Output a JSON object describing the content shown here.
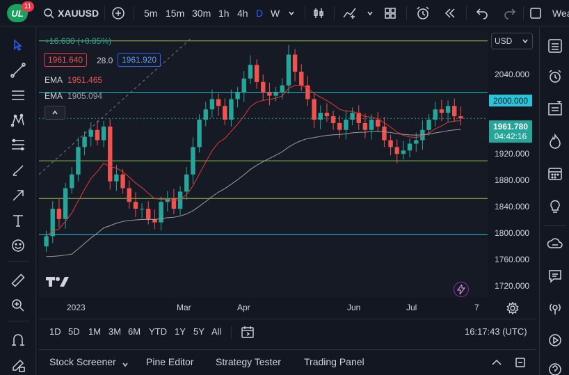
{
  "header": {
    "badge_count": "11",
    "symbol": "XAUUSD",
    "intervals": [
      "5m",
      "15m",
      "30m",
      "1h",
      "4h",
      "D",
      "W"
    ],
    "active_interval": "D",
    "weather_label": "Wea"
  },
  "legend": {
    "change": "+16.630 (+0.85%)",
    "bid": "1961.640",
    "spread": "28.0",
    "ask": "1961.920",
    "ema1_label": "EMA",
    "ema1_value": "1951.465",
    "ema2_label": "EMA",
    "ema2_value": "1905.094"
  },
  "price_axis": {
    "currency": "USD",
    "ticks": [
      "2040.000",
      "1920.000",
      "1880.000",
      "1840.000",
      "1800.000",
      "1760.000",
      "1720.000"
    ],
    "level_label": "2000.000",
    "last_price": "1961.780",
    "countdown": "04:42:16"
  },
  "time_axis": {
    "ticks": [
      "2023",
      "Mar",
      "Apr",
      "Jun",
      "Jul",
      "7"
    ]
  },
  "ranges": [
    "1D",
    "5D",
    "1M",
    "3M",
    "6M",
    "YTD",
    "1Y",
    "5Y",
    "All"
  ],
  "clock": "16:17:43 (UTC)",
  "bottom_tabs": [
    "Stock Screener",
    "Pine Editor",
    "Strategy Tester",
    "Trading Panel"
  ],
  "colors": {
    "up": "#26a69a",
    "down": "#ef5350",
    "ema_fast": "#e53935",
    "ema_slow": "#9e9e9e",
    "level_cyan": "#26c6da",
    "level_green": "#8bc34a",
    "accent_blue": "#2962ff"
  },
  "chart_data": {
    "type": "candlestick",
    "symbol": "XAUUSD",
    "timeframe": "D",
    "ylim": [
      1700,
      2090
    ],
    "horizontal_levels": [
      2000,
      1900,
      1845,
      1792,
      2075
    ],
    "last_price": 1961.78,
    "closes_approx": [
      1790,
      1830,
      1815,
      1860,
      1880,
      1920,
      1935,
      1945,
      1930,
      1950,
      1870,
      1880,
      1860,
      1840,
      1830,
      1830,
      1815,
      1810,
      1840,
      1845,
      1830,
      1855,
      1880,
      1920,
      1960,
      1975,
      1990,
      1980,
      1960,
      1990,
      2000,
      2020,
      2040,
      2015,
      2000,
      1995,
      2000,
      2010,
      2055,
      2030,
      2010,
      1990,
      1960,
      1970,
      1965,
      1955,
      1945,
      1960,
      1970,
      1955,
      1945,
      1960,
      1950,
      1930,
      1920,
      1910,
      1915,
      1925,
      1930,
      1945,
      1960,
      1975,
      1970,
      1980,
      1965,
      1961.78
    ]
  }
}
